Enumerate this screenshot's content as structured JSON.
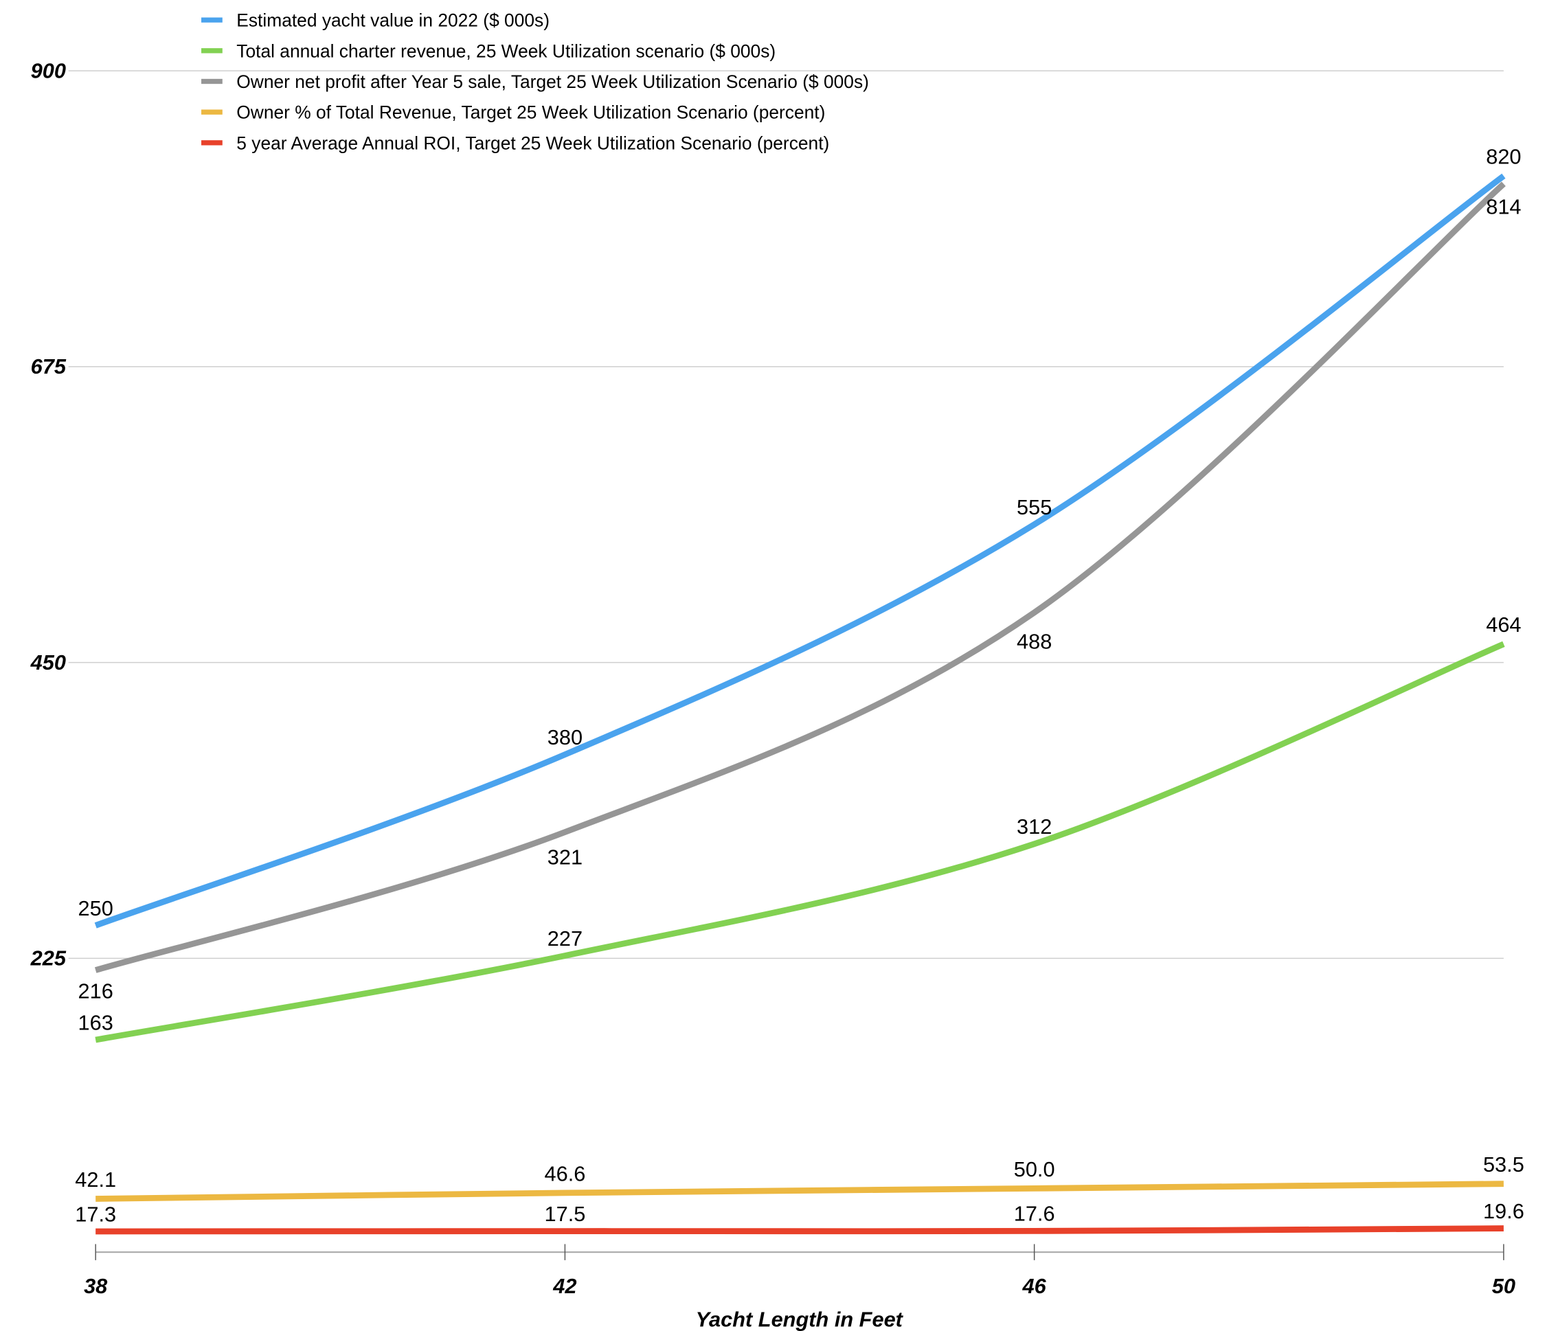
{
  "chart_data": {
    "type": "line",
    "title": "",
    "xlabel": "Yacht Length in Feet",
    "ylabel": "",
    "x": [
      38,
      42,
      46,
      50
    ],
    "x_tick_labels": [
      "38",
      "42",
      "46",
      "50"
    ],
    "ylim": [
      0,
      900
    ],
    "y_ticks": [
      225,
      450,
      675,
      900
    ],
    "y_tick_labels": [
      "225",
      "450",
      "675",
      "900"
    ],
    "grid": true,
    "legend_position": "top-left",
    "series": [
      {
        "name": "Estimated yacht value in 2022 ($ 000s)",
        "color": "#4aa3ee",
        "values": [
          250,
          380,
          555,
          820
        ],
        "labels": [
          "250",
          "380",
          "555",
          "820"
        ]
      },
      {
        "name": "Total annual charter revenue, 25 Week Utilization scenario ($ 000s)",
        "color": "#82d152",
        "values": [
          163,
          227,
          312,
          464
        ],
        "labels": [
          "163",
          "227",
          "312",
          "464"
        ]
      },
      {
        "name": "Owner net profit after Year 5 sale, Target 25 Week Utilization Scenario ($ 000s)",
        "color": "#969696",
        "values": [
          216,
          321,
          488,
          814
        ],
        "labels": [
          "216",
          "321",
          "488",
          "814"
        ]
      },
      {
        "name": "Owner % of Total Revenue, Target 25 Week Utilization Scenario (percent)",
        "color": "#ecb842",
        "values": [
          42.1,
          46.6,
          50.0,
          53.5
        ],
        "labels": [
          "42.1",
          "46.6",
          "50.0",
          "53.5"
        ]
      },
      {
        "name": "5 year Average Annual ROI, Target 25 Week Utilization Scenario (percent)",
        "color": "#e8412a",
        "values": [
          17.3,
          17.5,
          17.6,
          19.6
        ],
        "labels": [
          "17.3",
          "17.5",
          "17.6",
          "19.6"
        ]
      }
    ]
  }
}
